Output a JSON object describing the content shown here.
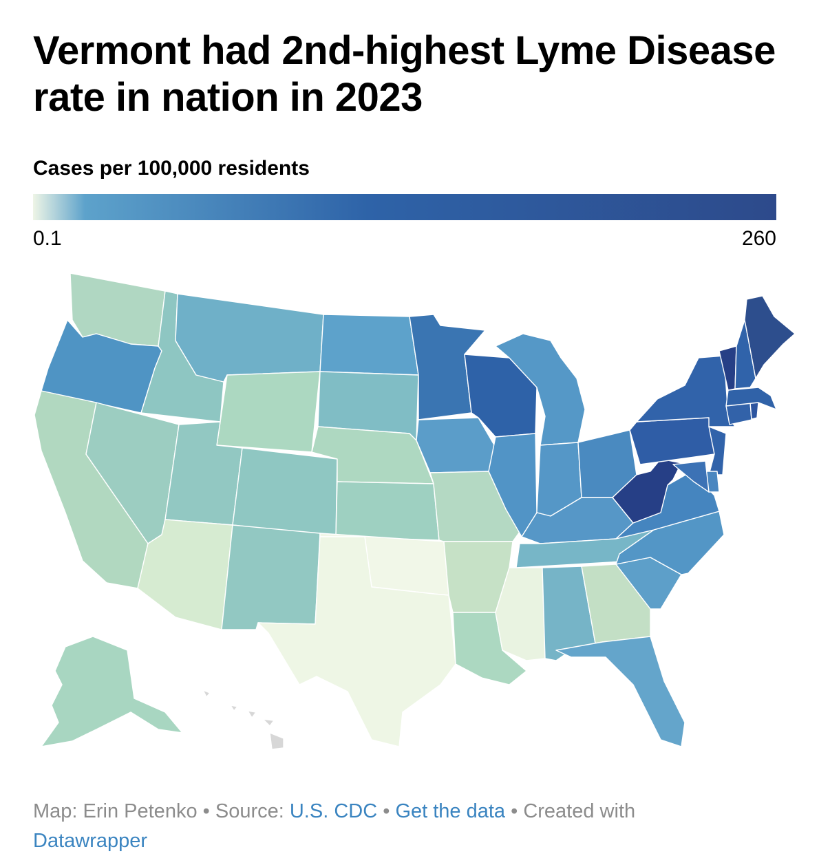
{
  "title": "Vermont had 2nd-highest Lyme Disease rate in nation in 2023",
  "legend": {
    "title": "Cases per 100,000 residents",
    "min_label": "0.1",
    "max_label": "260",
    "gradient": [
      "#eef5e6",
      "#5da2cb",
      "#2e63a8",
      "#2d4a8b"
    ]
  },
  "footer": {
    "map_prefix": "Map: Erin Petenko",
    "sep1": " • Source: ",
    "source_link": "U.S. CDC",
    "sep2": " • ",
    "data_link": "Get the data",
    "sep3": " • Created with ",
    "tool_link": "Datawrapper"
  },
  "states": {
    "WA": "#b0d7c2",
    "OR": "#4f94c4",
    "CA": "#b1d8c0",
    "ID": "#8ec6c2",
    "NV": "#9ccdc1",
    "MT": "#6fb0c8",
    "WY": "#acd8c1",
    "UT": "#92c8c2",
    "AZ": "#d6ebd1",
    "CO": "#8fc7c2",
    "NM": "#92c8c2",
    "ND": "#5da2cb",
    "SD": "#80bdc5",
    "NE": "#aed8c1",
    "KS": "#9ed0c1",
    "OK": "#f1f7e8",
    "TX": "#eef6e5",
    "MN": "#3a75b2",
    "IA": "#5b9dc9",
    "MO": "#b4d9c3",
    "AR": "#c6e1c6",
    "LA": "#acd8c1",
    "WI": "#2e62a8",
    "IL": "#5194c6",
    "MS": "#e9f3e1",
    "MI": "#5598c7",
    "IN": "#5597c7",
    "OH": "#4a8ac0",
    "KY": "#5697c7",
    "TN": "#77b6c7",
    "AL": "#76b4c7",
    "GA": "#c3dfc5",
    "FL": "#64a5cb",
    "SC": "#5d9fc9",
    "NC": "#5396c6",
    "VA": "#4585bf",
    "WV": "#263f86",
    "PA": "#2f5da6",
    "NY": "#3163aa",
    "VT": "#263f86",
    "NH": "#3063aa",
    "ME": "#2d4e8d",
    "MA": "#3062a8",
    "CT": "#3262a9",
    "RI": "#2d55a0",
    "NJ": "#3163aa",
    "DE": "#4a86c0",
    "MD": "#3c72b5",
    "AK": "#a8d6c1",
    "HI": "#d7d7d7"
  }
}
